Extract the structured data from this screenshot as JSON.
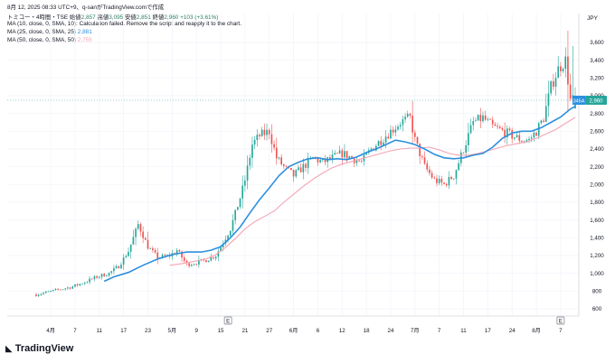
{
  "header": {
    "timestamp": "8月 12, 2025 08:33 UTC+9、q-sanがTradingView.comで作成",
    "symbol": "トミコー・4時間・TSE",
    "open_label": "始値",
    "open": "2,857",
    "high_label": "高値",
    "high": "3,095",
    "low_label": "安値",
    "low": "2,851",
    "close_label": "終値",
    "close": "2,960",
    "change": "+103 (+3.61%)",
    "ma10_label": "MA (10, close, 0, SMA, 10)",
    "ma10_msg": "Calculation failed. Remove the script and reapply it to the chart.",
    "ma25_label": "MA (25, close, 0, SMA, 25)",
    "ma25_value": "2,881",
    "ma50_label": "MA (50, close, 0, SMA, 50)",
    "ma50_value": "2,755"
  },
  "currency": "JPY",
  "last_price_label": "2,960",
  "ma_tag": "345A",
  "earnings_marker": "E",
  "brand": "TradingView",
  "colors": {
    "up": "#26a69a",
    "down": "#ef5350",
    "ma25": "#2d8fdf",
    "ma50": "#f4a3b3",
    "grid": "#f0f3fa",
    "text": "#131722",
    "price_tag": "#26a69a"
  },
  "chart_data": {
    "type": "candlestick",
    "ylim": [
      600,
      3600
    ],
    "yticks": [
      600,
      800,
      1000,
      1200,
      1400,
      1600,
      1800,
      2000,
      2200,
      2400,
      2600,
      2800,
      3000,
      3200,
      3400,
      3600
    ],
    "ytick_labels": [
      "600",
      "800",
      "1,000",
      "1,200",
      "1,400",
      "1,600",
      "1,800",
      "2,000",
      "2,200",
      "2,400",
      "2,600",
      "2,800",
      "3,000",
      "3,200",
      "3,400",
      "3,600"
    ],
    "xticks": [
      {
        "label": "4月",
        "i": 6
      },
      {
        "label": "7",
        "i": 16
      },
      {
        "label": "11",
        "i": 26
      },
      {
        "label": "17",
        "i": 36
      },
      {
        "label": "23",
        "i": 46
      },
      {
        "label": "5月",
        "i": 56
      },
      {
        "label": "9",
        "i": 66
      },
      {
        "label": "15",
        "i": 76
      },
      {
        "label": "21",
        "i": 86
      },
      {
        "label": "27",
        "i": 96
      },
      {
        "label": "6月",
        "i": 106
      },
      {
        "label": "6",
        "i": 116
      },
      {
        "label": "12",
        "i": 126
      },
      {
        "label": "18",
        "i": 136
      },
      {
        "label": "24",
        "i": 146
      },
      {
        "label": "7月",
        "i": 156
      },
      {
        "label": "7",
        "i": 166
      },
      {
        "label": "11",
        "i": 176
      },
      {
        "label": "17",
        "i": 186
      },
      {
        "label": "24",
        "i": 196
      },
      {
        "label": "8月",
        "i": 206
      },
      {
        "label": "7",
        "i": 216
      }
    ],
    "earnings_at": [
      79,
      216
    ],
    "path": [
      [
        0,
        760
      ],
      [
        5,
        790
      ],
      [
        10,
        820
      ],
      [
        15,
        850
      ],
      [
        20,
        900
      ],
      [
        25,
        960
      ],
      [
        30,
        1000
      ],
      [
        34,
        1080
      ],
      [
        38,
        1250
      ],
      [
        42,
        1550
      ],
      [
        46,
        1300
      ],
      [
        50,
        1180
      ],
      [
        55,
        1200
      ],
      [
        58,
        1260
      ],
      [
        62,
        1100
      ],
      [
        66,
        1120
      ],
      [
        70,
        1150
      ],
      [
        74,
        1200
      ],
      [
        77,
        1350
      ],
      [
        80,
        1500
      ],
      [
        84,
        1850
      ],
      [
        86,
        2050
      ],
      [
        89,
        2450
      ],
      [
        92,
        2550
      ],
      [
        96,
        2600
      ],
      [
        99,
        2300
      ],
      [
        102,
        2200
      ],
      [
        106,
        2100
      ],
      [
        110,
        2200
      ],
      [
        114,
        2300
      ],
      [
        118,
        2250
      ],
      [
        122,
        2300
      ],
      [
        126,
        2350
      ],
      [
        130,
        2300
      ],
      [
        134,
        2250
      ],
      [
        138,
        2400
      ],
      [
        142,
        2500
      ],
      [
        146,
        2600
      ],
      [
        150,
        2700
      ],
      [
        154,
        2750
      ],
      [
        156,
        2500
      ],
      [
        160,
        2200
      ],
      [
        164,
        2050
      ],
      [
        168,
        2000
      ],
      [
        172,
        2100
      ],
      [
        176,
        2400
      ],
      [
        180,
        2700
      ],
      [
        184,
        2750
      ],
      [
        188,
        2650
      ],
      [
        192,
        2600
      ],
      [
        196,
        2550
      ],
      [
        200,
        2500
      ],
      [
        203,
        2500
      ],
      [
        206,
        2600
      ],
      [
        209,
        2750
      ],
      [
        212,
        3100
      ],
      [
        215,
        3300
      ],
      [
        218,
        3400
      ],
      [
        220,
        2950
      ],
      [
        222,
        2960
      ]
    ],
    "ma25": [
      [
        28,
        910
      ],
      [
        32,
        960
      ],
      [
        38,
        1010
      ],
      [
        44,
        1090
      ],
      [
        50,
        1160
      ],
      [
        56,
        1210
      ],
      [
        62,
        1240
      ],
      [
        68,
        1240
      ],
      [
        72,
        1260
      ],
      [
        76,
        1300
      ],
      [
        80,
        1400
      ],
      [
        84,
        1520
      ],
      [
        88,
        1680
      ],
      [
        92,
        1830
      ],
      [
        96,
        1960
      ],
      [
        100,
        2100
      ],
      [
        104,
        2200
      ],
      [
        108,
        2250
      ],
      [
        112,
        2290
      ],
      [
        116,
        2300
      ],
      [
        120,
        2280
      ],
      [
        124,
        2290
      ],
      [
        128,
        2280
      ],
      [
        132,
        2310
      ],
      [
        136,
        2360
      ],
      [
        140,
        2400
      ],
      [
        144,
        2450
      ],
      [
        148,
        2500
      ],
      [
        152,
        2480
      ],
      [
        156,
        2450
      ],
      [
        160,
        2400
      ],
      [
        164,
        2340
      ],
      [
        168,
        2300
      ],
      [
        172,
        2290
      ],
      [
        176,
        2300
      ],
      [
        180,
        2330
      ],
      [
        184,
        2350
      ],
      [
        188,
        2420
      ],
      [
        192,
        2520
      ],
      [
        196,
        2580
      ],
      [
        200,
        2600
      ],
      [
        204,
        2600
      ],
      [
        208,
        2640
      ],
      [
        212,
        2700
      ],
      [
        216,
        2760
      ],
      [
        220,
        2850
      ],
      [
        222,
        2881
      ]
    ],
    "ma50": [
      [
        55,
        1090
      ],
      [
        60,
        1110
      ],
      [
        66,
        1140
      ],
      [
        70,
        1160
      ],
      [
        74,
        1210
      ],
      [
        78,
        1290
      ],
      [
        82,
        1390
      ],
      [
        86,
        1500
      ],
      [
        90,
        1580
      ],
      [
        94,
        1640
      ],
      [
        98,
        1700
      ],
      [
        102,
        1800
      ],
      [
        106,
        1890
      ],
      [
        110,
        1980
      ],
      [
        114,
        2060
      ],
      [
        118,
        2130
      ],
      [
        122,
        2190
      ],
      [
        126,
        2230
      ],
      [
        130,
        2260
      ],
      [
        134,
        2290
      ],
      [
        138,
        2320
      ],
      [
        142,
        2350
      ],
      [
        146,
        2380
      ],
      [
        150,
        2400
      ],
      [
        154,
        2410
      ],
      [
        158,
        2410
      ],
      [
        162,
        2420
      ],
      [
        166,
        2390
      ],
      [
        170,
        2350
      ],
      [
        174,
        2330
      ],
      [
        178,
        2330
      ],
      [
        182,
        2350
      ],
      [
        186,
        2380
      ],
      [
        190,
        2410
      ],
      [
        194,
        2440
      ],
      [
        198,
        2460
      ],
      [
        202,
        2480
      ],
      [
        206,
        2520
      ],
      [
        210,
        2570
      ],
      [
        214,
        2620
      ],
      [
        218,
        2690
      ],
      [
        222,
        2755
      ]
    ]
  }
}
